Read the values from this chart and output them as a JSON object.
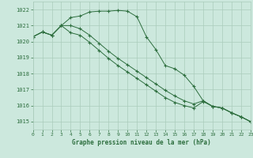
{
  "title": "Graphe pression niveau de la mer (hPa)",
  "background_color": "#cce8dd",
  "grid_color": "#aaccbb",
  "line_color": "#2d6e3e",
  "xlim": [
    0,
    23
  ],
  "ylim": [
    1014.5,
    1022.5
  ],
  "yticks": [
    1015,
    1016,
    1017,
    1018,
    1019,
    1020,
    1021,
    1022
  ],
  "xticks": [
    0,
    1,
    2,
    3,
    4,
    5,
    6,
    7,
    8,
    9,
    10,
    11,
    12,
    13,
    14,
    15,
    16,
    17,
    18,
    19,
    20,
    21,
    22,
    23
  ],
  "series1_y": [
    1020.3,
    1020.6,
    1020.4,
    1021.0,
    1021.5,
    1021.6,
    1021.85,
    1021.9,
    1021.9,
    1021.95,
    1021.9,
    1021.55,
    1020.3,
    1019.5,
    1018.5,
    1018.3,
    1017.9,
    1017.2,
    1016.3,
    1015.95,
    1015.85,
    1015.55,
    1015.3,
    1015.0
  ],
  "series2_y": [
    1020.3,
    1020.6,
    1020.4,
    1021.0,
    1021.0,
    1020.8,
    1020.4,
    1019.9,
    1019.4,
    1018.95,
    1018.55,
    1018.15,
    1017.75,
    1017.35,
    1016.95,
    1016.6,
    1016.3,
    1016.1,
    1016.3,
    1015.95,
    1015.85,
    1015.55,
    1015.3,
    1015.0
  ],
  "series3_y": [
    1020.3,
    1020.6,
    1020.4,
    1021.0,
    1020.55,
    1020.4,
    1019.95,
    1019.45,
    1018.95,
    1018.5,
    1018.1,
    1017.7,
    1017.3,
    1016.9,
    1016.5,
    1016.2,
    1016.0,
    1015.85,
    1016.25,
    1015.95,
    1015.85,
    1015.55,
    1015.3,
    1015.0
  ]
}
